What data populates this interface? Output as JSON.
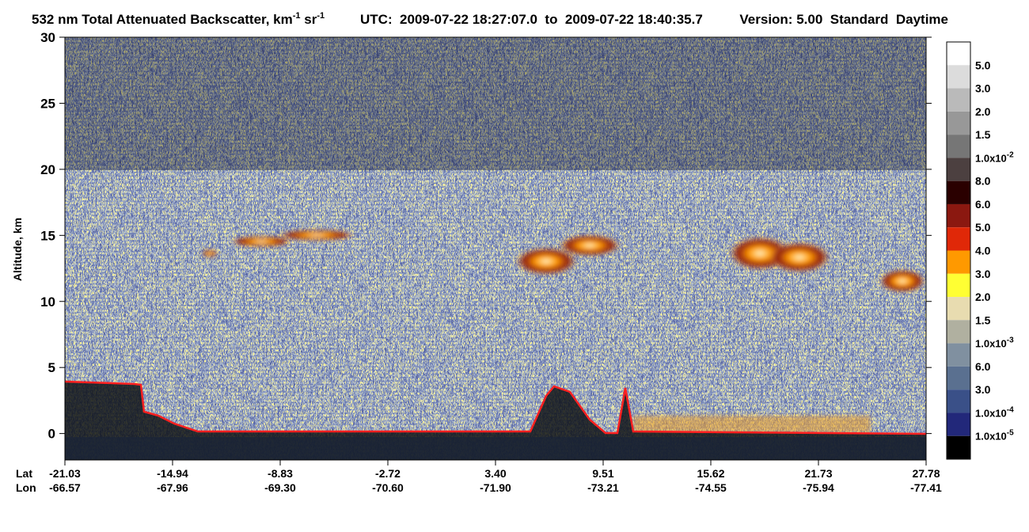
{
  "chart_data": {
    "type": "curtain",
    "title": {
      "main": "532 nm Total Attenuated Backscatter, km",
      "exp1": "-1",
      "unit2": " sr",
      "exp2": "-1"
    },
    "time_range": "UTC:  2009-07-22 18:27:07.0  to  2009-07-22 18:40:35.7",
    "version": "Version: 5.00  Standard  Daytime",
    "y_label": "Altitude, km",
    "ylim": [
      -2,
      30
    ],
    "yticks": [
      0,
      5,
      10,
      15,
      20,
      25,
      30
    ],
    "xtick_rows": [
      {
        "name": "Lat",
        "labels": [
          "-21.03",
          "-14.94",
          "-8.83",
          "-2.72",
          "3.40",
          "9.51",
          "15.62",
          "21.73",
          "27.78"
        ]
      },
      {
        "name": "Lon",
        "labels": [
          "-66.57",
          "-67.96",
          "-69.30",
          "-70.60",
          "-71.90",
          "-73.21",
          "-74.55",
          "-75.94",
          "-77.41"
        ]
      }
    ],
    "colorbar": {
      "colors": [
        "#ffffff",
        "#dcdcdc",
        "#bababa",
        "#989898",
        "#767676",
        "#4c4040",
        "#2a0000",
        "#8b1810",
        "#e02808",
        "#ff9900",
        "#ffff33",
        "#e8dcb0",
        "#b0b0a0",
        "#8090a0",
        "#5a7090",
        "#3a5088",
        "#22287a",
        "#000000"
      ],
      "labels": [
        "5.0",
        "3.0",
        "2.0",
        "1.5",
        {
          "text": "1.0x10",
          "exp": "-2"
        },
        "8.0",
        "6.0",
        "5.0",
        "4.0",
        "3.0",
        "2.0",
        "1.5",
        {
          "text": "1.0x10",
          "exp": "-3"
        },
        "6.0",
        "3.0",
        {
          "text": "1.0x10",
          "exp": "-4"
        },
        {
          "text": "1.0x10",
          "exp": "-5"
        }
      ]
    }
  }
}
